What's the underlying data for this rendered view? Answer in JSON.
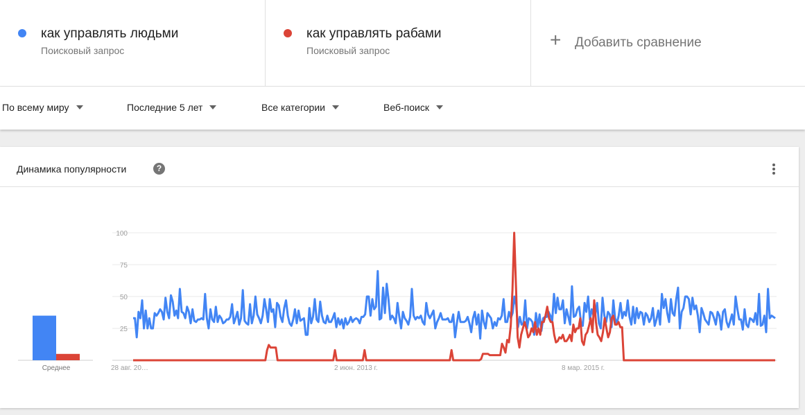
{
  "compare": {
    "terms": [
      {
        "label": "как управлять людьми",
        "sublabel": "Поисковый запрос",
        "color": "#4285f4"
      },
      {
        "label": "как управлять рабами",
        "sublabel": "Поисковый запрос",
        "color": "#db4437"
      }
    ],
    "add_label": "Добавить сравнение",
    "add_icon": "plus-icon"
  },
  "filters": {
    "region": "По всему миру",
    "period": "Последние 5 лет",
    "category": "Все категории",
    "search_type": "Веб-поиск"
  },
  "card": {
    "title": "Динамика популярности",
    "help_icon": "?",
    "menu_icon": "more-vert-icon"
  },
  "chart_data": {
    "type": "line",
    "ylim": [
      0,
      100
    ],
    "yticks": [
      "100",
      "75",
      "50",
      "25"
    ],
    "xtick_labels": [
      "28 авг. 20…",
      "2 июн. 2013 г.",
      "8 мар. 2015 г."
    ],
    "grid": true,
    "legend": "none",
    "series": [
      {
        "color": "#4285f4",
        "values": [
          33,
          33,
          18,
          38,
          33,
          47,
          25,
          39,
          25,
          33,
          25,
          25,
          37,
          35,
          37,
          40,
          38,
          32,
          49,
          38,
          33,
          51,
          46,
          35,
          39,
          33,
          56,
          38,
          37,
          33,
          42,
          38,
          29,
          40,
          31,
          30,
          32,
          32,
          33,
          32,
          52,
          33,
          25,
          40,
          32,
          30,
          42,
          30,
          35,
          33,
          29,
          30,
          32,
          32,
          34,
          44,
          29,
          33,
          38,
          28,
          33,
          55,
          31,
          29,
          28,
          44,
          29,
          35,
          50,
          36,
          33,
          29,
          35,
          48,
          40,
          30,
          48,
          38,
          40,
          26,
          45,
          43,
          34,
          30,
          41,
          47,
          35,
          29,
          27,
          32,
          40,
          29,
          39,
          31,
          32,
          33,
          20,
          20,
          41,
          29,
          34,
          48,
          32,
          30,
          46,
          35,
          30,
          29,
          35,
          30,
          30,
          33,
          37,
          26,
          33,
          28,
          32,
          25,
          33,
          28,
          30,
          34,
          30,
          32,
          33,
          32,
          29,
          34,
          34,
          36,
          50,
          50,
          35,
          48,
          40,
          42,
          70,
          32,
          33,
          57,
          37,
          60,
          48,
          32,
          35,
          33,
          29,
          45,
          34,
          25,
          38,
          33,
          31,
          28,
          34,
          56,
          35,
          32,
          34,
          33,
          35,
          30,
          28,
          45,
          36,
          33,
          36,
          39,
          25,
          30,
          33,
          37,
          32,
          32,
          32,
          33,
          30,
          30,
          36,
          18,
          29,
          38,
          30,
          30,
          30,
          31,
          34,
          29,
          22,
          33,
          38,
          28,
          36,
          17,
          39,
          30,
          25,
          37,
          35,
          33,
          25,
          30,
          27,
          33,
          32,
          35,
          48,
          30,
          30,
          38,
          33,
          37,
          50,
          43,
          26,
          34,
          28,
          29,
          47,
          25,
          33,
          32,
          30,
          20,
          37,
          26,
          36,
          23,
          33,
          34,
          34,
          38,
          35,
          31,
          52,
          37,
          49,
          40,
          40,
          47,
          29,
          40,
          34,
          28,
          58,
          34,
          35,
          40,
          42,
          30,
          27,
          45,
          38,
          50,
          32,
          40,
          35,
          36,
          45,
          29,
          25,
          49,
          35,
          30,
          38,
          36,
          26,
          47,
          33,
          29,
          35,
          45,
          33,
          38,
          35,
          47,
          34,
          28,
          42,
          29,
          41,
          33,
          38,
          37,
          28,
          37,
          35,
          30,
          33,
          41,
          27,
          32,
          39,
          28,
          52,
          41,
          48,
          37,
          30,
          48,
          37,
          35,
          48,
          57,
          25,
          38,
          41,
          50,
          50,
          48,
          36,
          49,
          40,
          43,
          35,
          22,
          41,
          37,
          32,
          30,
          28,
          38,
          37,
          33,
          28,
          38,
          35,
          24,
          38,
          40,
          30,
          26,
          31,
          36,
          28,
          50,
          40,
          32,
          32,
          24,
          40,
          28,
          26,
          33,
          32,
          30,
          37,
          28,
          52,
          27,
          28,
          35,
          22,
          56,
          33,
          35,
          34,
          33
        ]
      },
      {
        "color": "#db4437",
        "values": [
          0,
          0,
          0,
          0,
          0,
          0,
          0,
          0,
          0,
          0,
          0,
          0,
          0,
          0,
          0,
          0,
          0,
          0,
          0,
          0,
          0,
          0,
          0,
          0,
          0,
          0,
          0,
          0,
          0,
          0,
          0,
          0,
          0,
          0,
          0,
          0,
          0,
          0,
          0,
          0,
          0,
          0,
          0,
          0,
          0,
          0,
          0,
          0,
          0,
          0,
          0,
          0,
          0,
          0,
          0,
          0,
          0,
          0,
          0,
          0,
          0,
          0,
          0,
          0,
          0,
          0,
          0,
          0,
          0,
          0,
          0,
          0,
          0,
          0,
          0,
          0,
          0,
          0,
          0,
          0,
          0,
          0,
          0,
          0,
          0,
          0,
          0,
          0,
          0,
          0,
          0,
          0,
          0,
          0,
          0,
          0,
          0,
          0,
          0,
          0,
          0,
          0,
          0,
          0,
          0,
          0,
          0,
          0,
          0,
          0,
          0,
          0,
          0,
          0,
          0,
          0,
          0,
          0,
          0,
          0,
          0,
          0,
          0,
          0,
          0,
          0,
          0,
          0,
          0,
          0,
          0,
          0,
          0,
          0,
          0,
          0,
          0,
          0,
          0,
          0,
          0,
          0,
          0,
          0,
          0,
          0,
          0,
          0,
          0,
          0,
          0,
          0,
          0,
          0,
          0,
          0,
          0,
          0,
          0,
          0,
          0,
          0,
          0,
          0,
          0,
          0,
          0,
          0,
          0,
          0,
          0,
          0,
          0,
          0,
          0,
          0,
          0,
          0,
          0,
          0,
          0,
          0,
          0,
          0,
          0,
          0,
          0,
          0,
          0,
          0,
          0,
          0,
          0,
          0,
          0,
          0,
          0,
          0,
          0,
          0,
          0,
          0,
          0,
          0,
          0,
          0,
          0,
          0,
          0,
          0,
          0,
          0,
          0,
          0,
          0,
          0,
          0,
          0,
          0,
          0,
          0,
          0,
          0,
          0,
          0,
          0,
          0,
          0,
          0,
          0,
          0,
          0,
          0,
          0,
          0,
          0,
          0,
          0,
          0,
          0,
          0,
          0,
          0,
          0,
          0,
          0,
          0,
          0,
          0,
          0,
          0,
          0,
          0,
          0,
          0,
          0,
          0,
          0,
          0,
          0,
          0,
          0,
          0,
          0,
          0,
          0,
          0,
          0,
          0,
          0,
          0,
          0,
          0,
          0,
          0,
          0,
          0,
          0,
          0,
          0,
          0,
          0,
          0,
          0,
          0,
          0,
          0,
          0,
          0,
          0,
          0,
          0,
          0,
          0,
          0,
          0,
          0,
          0,
          0,
          0,
          0,
          0,
          0,
          0,
          0,
          0,
          0,
          0,
          0,
          0,
          0,
          0,
          0,
          0,
          0,
          0,
          0,
          0,
          0,
          0,
          0,
          0,
          0,
          0,
          0,
          0,
          0,
          0,
          0,
          0,
          0,
          0,
          0,
          0,
          0,
          0,
          0,
          0,
          0,
          0,
          0,
          0,
          0,
          0,
          0,
          0,
          0,
          0,
          0,
          0,
          0,
          0,
          0,
          0,
          0,
          0,
          0,
          0,
          0,
          0,
          0,
          0,
          0,
          0,
          0,
          0,
          0,
          0,
          0,
          0
        ]
      }
    ],
    "spikes": [
      {
        "series": 1,
        "index": 77,
        "values": [
          8,
          12,
          10,
          10,
          10,
          10
        ]
      },
      {
        "series": 1,
        "index": 116,
        "values": [
          8
        ]
      },
      {
        "series": 1,
        "index": 133,
        "values": [
          8
        ]
      },
      {
        "series": 1,
        "index": 183,
        "values": [
          8
        ]
      },
      {
        "series": 1,
        "index": 200,
        "values": [
          1,
          5,
          5,
          5,
          5,
          4,
          4,
          4,
          4,
          4,
          4,
          4,
          13,
          10,
          6,
          16,
          14,
          27,
          55,
          100,
          59,
          18,
          10,
          20,
          25,
          30,
          25,
          18,
          20,
          25,
          22,
          30,
          20,
          25,
          20,
          30,
          30,
          35,
          42,
          33,
          30,
          30,
          20,
          14,
          15,
          18,
          17,
          20,
          15,
          15,
          17,
          20,
          15,
          28,
          22,
          25,
          25,
          33,
          15,
          12,
          20,
          22,
          27,
          33,
          22,
          47,
          30,
          20,
          18,
          15,
          22,
          33,
          25,
          18,
          22,
          33,
          35,
          28,
          28,
          30,
          26,
          26
        ]
      }
    ],
    "average": {
      "label": "Среднее",
      "values": [
        35,
        5
      ]
    }
  }
}
